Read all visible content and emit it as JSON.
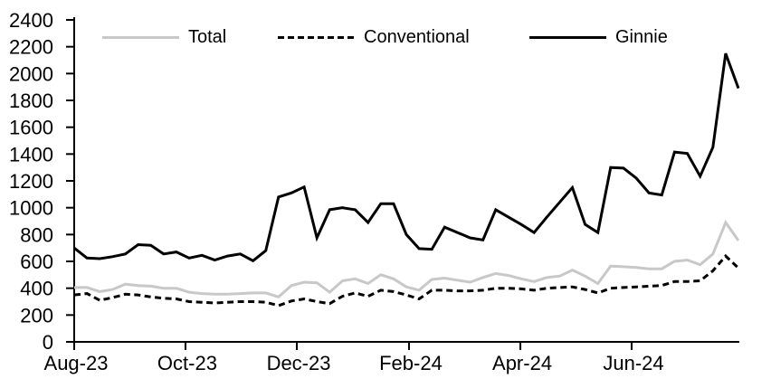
{
  "chart_data": {
    "type": "line",
    "title": "",
    "legend_position": "top",
    "grid": false,
    "ylim": [
      0,
      2400
    ],
    "y_tick_step": 200,
    "y_tick_labels": [
      "0",
      "200",
      "400",
      "600",
      "800",
      "1000",
      "1200",
      "1400",
      "1600",
      "1800",
      "2000",
      "2200",
      "2400"
    ],
    "x_tick_labels": [
      "Aug-23",
      "Oct-23",
      "Dec-23",
      "Feb-24",
      "Apr-24",
      "Jun-24"
    ],
    "x_tick_positions_weeks": [
      0,
      8.71,
      17.43,
      26.21,
      34.93,
      43.64
    ],
    "x_unit": "weekly observations, Aug-23 through Jul-24",
    "series": [
      {
        "name": "Total",
        "color": "#c8c8c8",
        "style": "solid",
        "values": [
          405,
          405,
          375,
          390,
          430,
          420,
          415,
          400,
          400,
          370,
          360,
          355,
          355,
          360,
          365,
          365,
          335,
          420,
          445,
          440,
          370,
          455,
          470,
          435,
          500,
          470,
          410,
          385,
          465,
          475,
          460,
          445,
          480,
          510,
          495,
          470,
          450,
          480,
          490,
          535,
          490,
          435,
          565,
          560,
          555,
          545,
          545,
          600,
          610,
          575,
          655,
          890,
          755
        ]
      },
      {
        "name": "Conventional",
        "color": "#000000",
        "style": "dashed",
        "values": [
          350,
          360,
          310,
          330,
          355,
          350,
          335,
          325,
          320,
          300,
          295,
          290,
          295,
          300,
          300,
          295,
          270,
          305,
          320,
          300,
          285,
          340,
          365,
          340,
          385,
          375,
          350,
          320,
          385,
          385,
          380,
          380,
          385,
          400,
          400,
          395,
          385,
          400,
          405,
          410,
          390,
          365,
          400,
          405,
          410,
          415,
          420,
          450,
          450,
          455,
          530,
          640,
          550
        ]
      },
      {
        "name": "Ginnie",
        "color": "#000000",
        "style": "solid",
        "values": [
          700,
          625,
          620,
          635,
          655,
          725,
          720,
          655,
          670,
          625,
          645,
          610,
          640,
          655,
          605,
          680,
          1080,
          1110,
          1155,
          775,
          985,
          1000,
          985,
          890,
          1030,
          1030,
          800,
          695,
          690,
          855,
          815,
          775,
          760,
          985,
          930,
          875,
          815,
          930,
          1040,
          1150,
          875,
          815,
          1300,
          1295,
          1220,
          1110,
          1095,
          1415,
          1405,
          1235,
          1450,
          2150,
          1890
        ]
      }
    ]
  }
}
